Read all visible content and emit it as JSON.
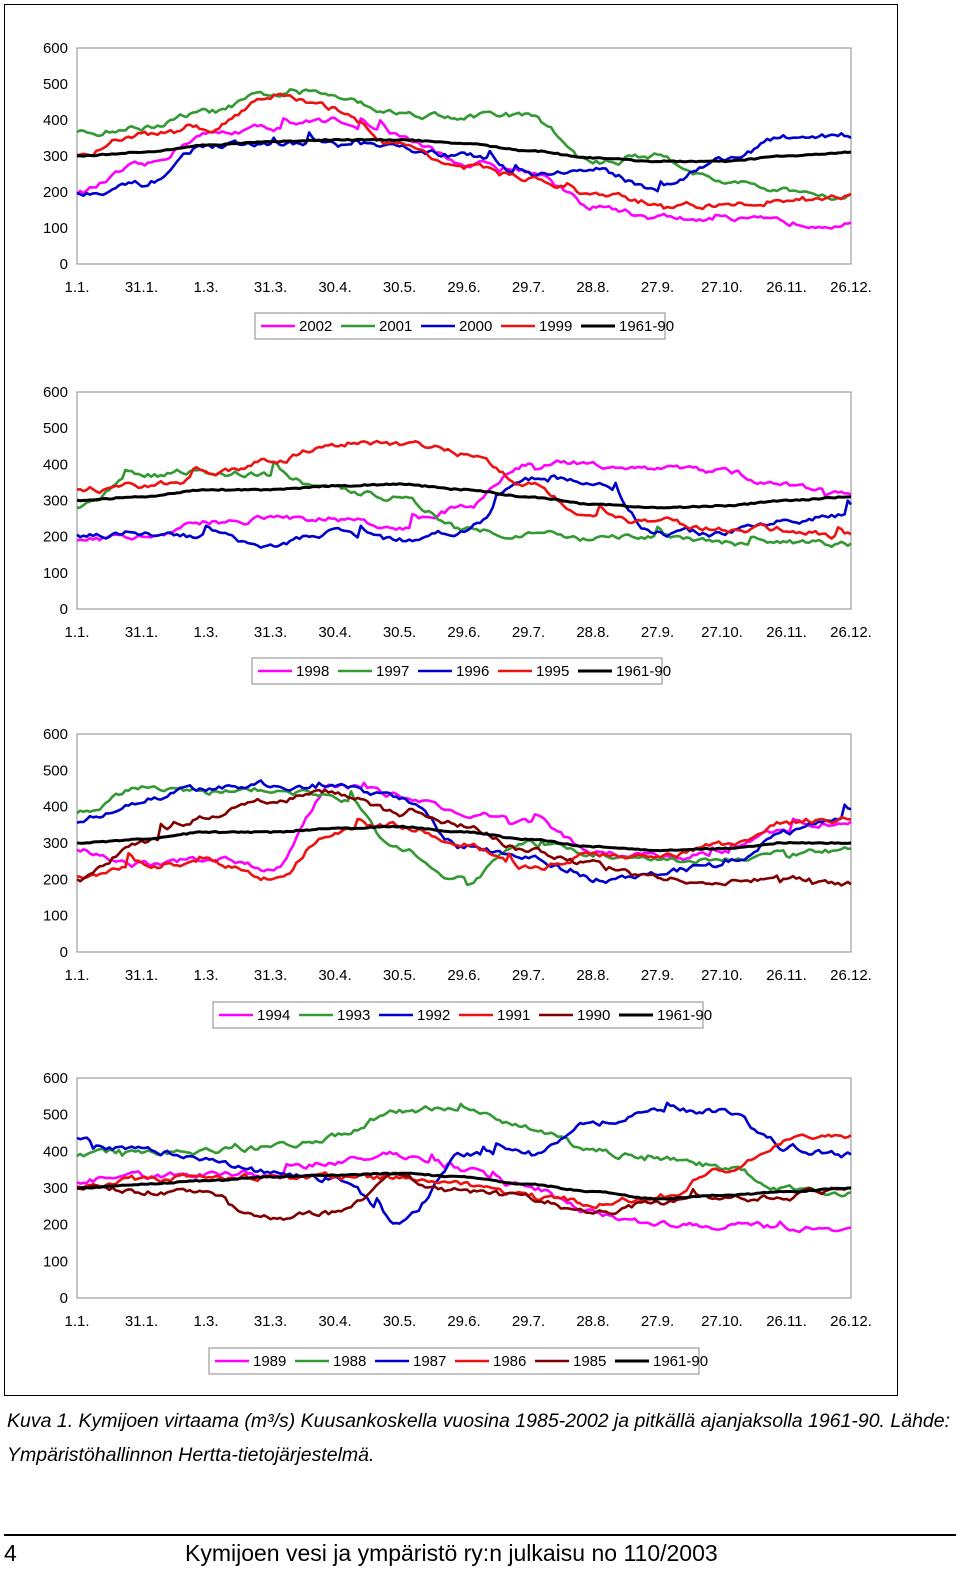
{
  "x_tick_labels": [
    "1.1.",
    "31.1.",
    "1.3.",
    "31.3.",
    "30.4.",
    "30.5.",
    "29.6.",
    "29.7.",
    "28.8.",
    "27.9.",
    "27.10.",
    "26.11.",
    "26.12."
  ],
  "y_tick_labels": [
    "0",
    "100",
    "200",
    "300",
    "400",
    "500",
    "600"
  ],
  "chart_data": [
    {
      "type": "line",
      "title": "",
      "xlabel": "",
      "ylabel": "",
      "ylim": [
        0,
        600
      ],
      "x": [
        "1.1.",
        "31.1.",
        "1.3.",
        "31.3.",
        "30.4.",
        "30.5.",
        "29.6.",
        "29.7.",
        "28.8.",
        "27.9.",
        "27.10.",
        "26.11.",
        "26.12."
      ],
      "grid": false,
      "legend_position": "bottom",
      "series": [
        {
          "name": "2002",
          "color": "#ff00ff",
          "values": [
            200,
            270,
            360,
            380,
            400,
            350,
            280,
            260,
            160,
            130,
            120,
            115,
            115
          ]
        },
        {
          "name": "2001",
          "color": "#339933",
          "values": [
            360,
            380,
            420,
            470,
            470,
            420,
            410,
            410,
            280,
            300,
            230,
            200,
            190
          ]
        },
        {
          "name": "2000",
          "color": "#0000cc",
          "values": [
            200,
            220,
            330,
            330,
            330,
            320,
            300,
            250,
            260,
            210,
            290,
            350,
            360
          ]
        },
        {
          "name": "1999",
          "color": "#ee1111",
          "values": [
            300,
            360,
            370,
            470,
            430,
            330,
            270,
            240,
            190,
            170,
            160,
            180,
            190
          ]
        },
        {
          "name": "1961-90",
          "color": "#000000",
          "values": [
            300,
            310,
            330,
            340,
            345,
            345,
            335,
            315,
            295,
            285,
            285,
            300,
            310
          ]
        }
      ]
    },
    {
      "type": "line",
      "title": "",
      "xlabel": "",
      "ylabel": "",
      "ylim": [
        0,
        600
      ],
      "x": [
        "1.1.",
        "31.1.",
        "1.3.",
        "31.3.",
        "30.4.",
        "30.5.",
        "29.6.",
        "29.7.",
        "28.8.",
        "27.9.",
        "27.10.",
        "26.11.",
        "26.12."
      ],
      "grid": false,
      "legend_position": "bottom",
      "series": [
        {
          "name": "1998",
          "color": "#ff00ff",
          "values": [
            190,
            200,
            240,
            250,
            250,
            220,
            280,
            400,
            400,
            390,
            380,
            340,
            320
          ]
        },
        {
          "name": "1997",
          "color": "#339933",
          "values": [
            280,
            370,
            380,
            370,
            330,
            310,
            220,
            210,
            190,
            200,
            180,
            180,
            180
          ]
        },
        {
          "name": "1996",
          "color": "#0000cc",
          "values": [
            200,
            210,
            200,
            180,
            210,
            190,
            220,
            360,
            350,
            210,
            210,
            240,
            260
          ]
        },
        {
          "name": "1995",
          "color": "#ee1111",
          "values": [
            330,
            340,
            360,
            410,
            460,
            460,
            430,
            350,
            250,
            240,
            220,
            220,
            200
          ]
        },
        {
          "name": "1961-90",
          "color": "#000000",
          "values": [
            300,
            310,
            330,
            330,
            340,
            345,
            330,
            310,
            290,
            280,
            285,
            300,
            310
          ]
        }
      ]
    },
    {
      "type": "line",
      "title": "",
      "xlabel": "",
      "ylabel": "",
      "ylim": [
        0,
        600
      ],
      "x": [
        "1.1.",
        "31.1.",
        "1.3.",
        "31.3.",
        "30.4.",
        "30.5.",
        "29.6.",
        "29.7.",
        "28.8.",
        "27.9.",
        "27.10.",
        "26.11.",
        "26.12."
      ],
      "grid": false,
      "legend_position": "bottom",
      "series": [
        {
          "name": "1994",
          "color": "#ff00ff",
          "values": [
            280,
            240,
            260,
            230,
            460,
            430,
            380,
            360,
            280,
            260,
            270,
            340,
            360
          ]
        },
        {
          "name": "1993",
          "color": "#339933",
          "values": [
            380,
            450,
            440,
            450,
            430,
            280,
            200,
            300,
            270,
            250,
            250,
            270,
            280
          ]
        },
        {
          "name": "1992",
          "color": "#0000cc",
          "values": [
            360,
            420,
            450,
            460,
            450,
            420,
            290,
            260,
            200,
            220,
            240,
            330,
            380
          ]
        },
        {
          "name": "1991",
          "color": "#ee1111",
          "values": [
            210,
            240,
            250,
            200,
            330,
            350,
            300,
            230,
            270,
            260,
            290,
            360,
            370
          ]
        },
        {
          "name": "1990",
          "color": "#800000",
          "values": [
            200,
            300,
            370,
            420,
            440,
            380,
            350,
            280,
            240,
            200,
            190,
            210,
            190
          ]
        },
        {
          "name": "1961-90",
          "color": "#000000",
          "values": [
            300,
            310,
            330,
            330,
            340,
            345,
            330,
            310,
            290,
            280,
            285,
            300,
            300
          ]
        }
      ]
    },
    {
      "type": "line",
      "title": "",
      "xlabel": "",
      "ylabel": "",
      "ylim": [
        0,
        600
      ],
      "x": [
        "1.1.",
        "31.1.",
        "1.3.",
        "31.3.",
        "30.4.",
        "30.5.",
        "29.6.",
        "29.7.",
        "28.8.",
        "27.9.",
        "27.10.",
        "26.11.",
        "26.12."
      ],
      "grid": false,
      "legend_position": "bottom",
      "series": [
        {
          "name": "1989",
          "color": "#ff00ff",
          "values": [
            320,
            330,
            340,
            340,
            370,
            390,
            350,
            300,
            230,
            200,
            200,
            190,
            190
          ]
        },
        {
          "name": "1988",
          "color": "#339933",
          "values": [
            390,
            400,
            400,
            410,
            440,
            510,
            520,
            460,
            400,
            380,
            360,
            300,
            290
          ]
        },
        {
          "name": "1987",
          "color": "#0000cc",
          "values": [
            430,
            400,
            380,
            340,
            330,
            200,
            390,
            400,
            480,
            510,
            510,
            410,
            390
          ]
        },
        {
          "name": "1986",
          "color": "#ee1111",
          "values": [
            300,
            320,
            330,
            330,
            330,
            330,
            310,
            280,
            260,
            270,
            350,
            430,
            440
          ]
        },
        {
          "name": "1985",
          "color": "#800000",
          "values": [
            300,
            290,
            280,
            220,
            230,
            330,
            290,
            270,
            230,
            260,
            270,
            280,
            300
          ]
        },
        {
          "name": "1961-90",
          "color": "#000000",
          "values": [
            300,
            310,
            320,
            330,
            335,
            340,
            330,
            310,
            290,
            270,
            280,
            290,
            300
          ]
        }
      ]
    }
  ],
  "caption": "Kuva 1. Kymijoen virtaama (m³/s) Kuusankoskella vuosina 1985-2002 ja pitkällä ajanjaksolla 1961-90. Lähde: Ympäristöhallinnon Hertta-tietojärjestelmä.",
  "footer": {
    "page_number": "4",
    "publication": "Kymijoen vesi ja ympäristö ry:n julkaisu no 110/2003"
  }
}
